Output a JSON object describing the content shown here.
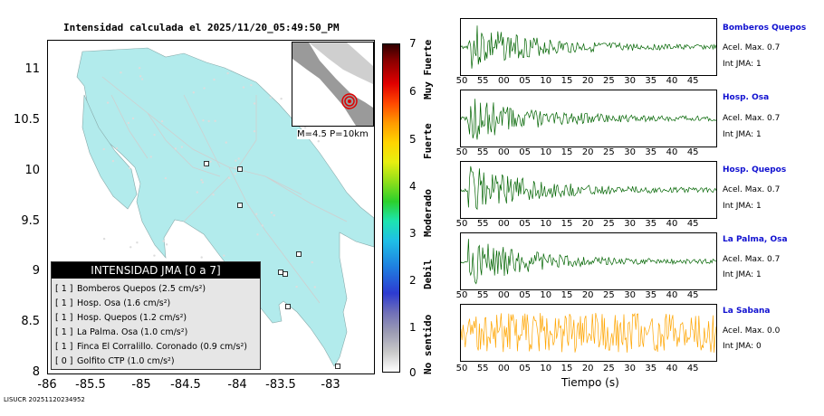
{
  "title": "Intensidad calculada el 2025/11/20_05:49:50_PM",
  "map": {
    "y_ticks": [
      "11",
      "10.5",
      "10",
      "9.5",
      "9",
      "8.5",
      "8"
    ],
    "x_ticks": [
      "-86",
      "-85.5",
      "-85",
      "-84.5",
      "-84",
      "-83.5",
      "-83"
    ],
    "inset_label": "M=4.5 P=10km",
    "land_color": "#b2ebec"
  },
  "legend": {
    "heading": "INTENSIDAD JMA [0 a 7]",
    "items": [
      {
        "intensity": "[ 1 ]",
        "name": "Bomberos Quepos",
        "value": "(2.5 cm/s²)"
      },
      {
        "intensity": "[ 1 ]",
        "name": "Hosp. Osa",
        "value": "(1.6 cm/s²)"
      },
      {
        "intensity": "[ 1 ]",
        "name": "Hosp. Quepos",
        "value": "(1.2 cm/s²)"
      },
      {
        "intensity": "[ 1 ]",
        "name": "La Palma. Osa",
        "value": "(1.0 cm/s²)"
      },
      {
        "intensity": "[ 1 ]",
        "name": "Finca El Corralillo. Coronado",
        "value": "(0.9 cm/s²)"
      },
      {
        "intensity": "[ 0 ]",
        "name": "Golfito CTP",
        "value": "(1.0 cm/s²)"
      }
    ]
  },
  "colorbar": {
    "ticks": [
      "7",
      "6",
      "5",
      "4",
      "3",
      "2",
      "1",
      "0"
    ],
    "words": [
      "Muy Fuerte",
      "Fuerte",
      "Moderado",
      "Debil",
      "No sentido"
    ]
  },
  "waveforms": {
    "axis_ticks": [
      "50",
      "55",
      "00",
      "05",
      "10",
      "15",
      "20",
      "25",
      "30",
      "35",
      "40",
      "45"
    ],
    "time_label": "Tiempo (s)",
    "stations": [
      {
        "name": "Bomberos Quepos",
        "acel": "Acel. Max. 0.7",
        "jma": "Int JMA: 1",
        "color": "#006400"
      },
      {
        "name": "Hosp. Osa",
        "acel": "Acel. Max. 0.7",
        "jma": "Int JMA: 1",
        "color": "#006400"
      },
      {
        "name": "Hosp. Quepos",
        "acel": "Acel. Max. 0.7",
        "jma": "Int JMA: 1",
        "color": "#006400"
      },
      {
        "name": "La Palma, Osa",
        "acel": "Acel. Max. 0.7",
        "jma": "Int JMA: 1",
        "color": "#006400"
      },
      {
        "name": "La Sabana",
        "acel": "Acel. Max. 0.0",
        "jma": "Int JMA: 0",
        "color": "#ffa500"
      }
    ]
  },
  "footer": "LISUCR 20251120234952"
}
